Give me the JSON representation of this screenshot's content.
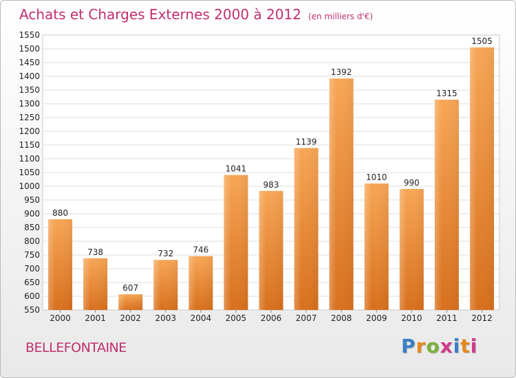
{
  "header": {
    "title": "Achats et Charges Externes 2000 à 2012",
    "subtitle": "(en milliers d'€)"
  },
  "footer": {
    "city": "BELLEFONTAINE",
    "logo_letters": [
      "P",
      "r",
      "o",
      "x",
      "i",
      "t",
      "i"
    ],
    "logo_colors": [
      "#3a7fc6",
      "#e8891e",
      "#7cb13a",
      "#d13b8a",
      "#3a7fc6",
      "#e8891e",
      "#d13b8a"
    ]
  },
  "chart_data": {
    "type": "bar",
    "categories": [
      "2000",
      "2001",
      "2002",
      "2003",
      "2004",
      "2005",
      "2006",
      "2007",
      "2008",
      "2009",
      "2010",
      "2011",
      "2012"
    ],
    "values": [
      880,
      738,
      607,
      732,
      746,
      1041,
      983,
      1139,
      1392,
      1010,
      990,
      1315,
      1505
    ],
    "title": "Achats et Charges Externes 2000 à 2012",
    "subtitle": "(en milliers d'€)",
    "ylim": [
      550,
      1550
    ],
    "ytick_step": 50,
    "grid": true,
    "bar_color": "#f39a3c",
    "bar_color_dark": "#d96f1c"
  }
}
